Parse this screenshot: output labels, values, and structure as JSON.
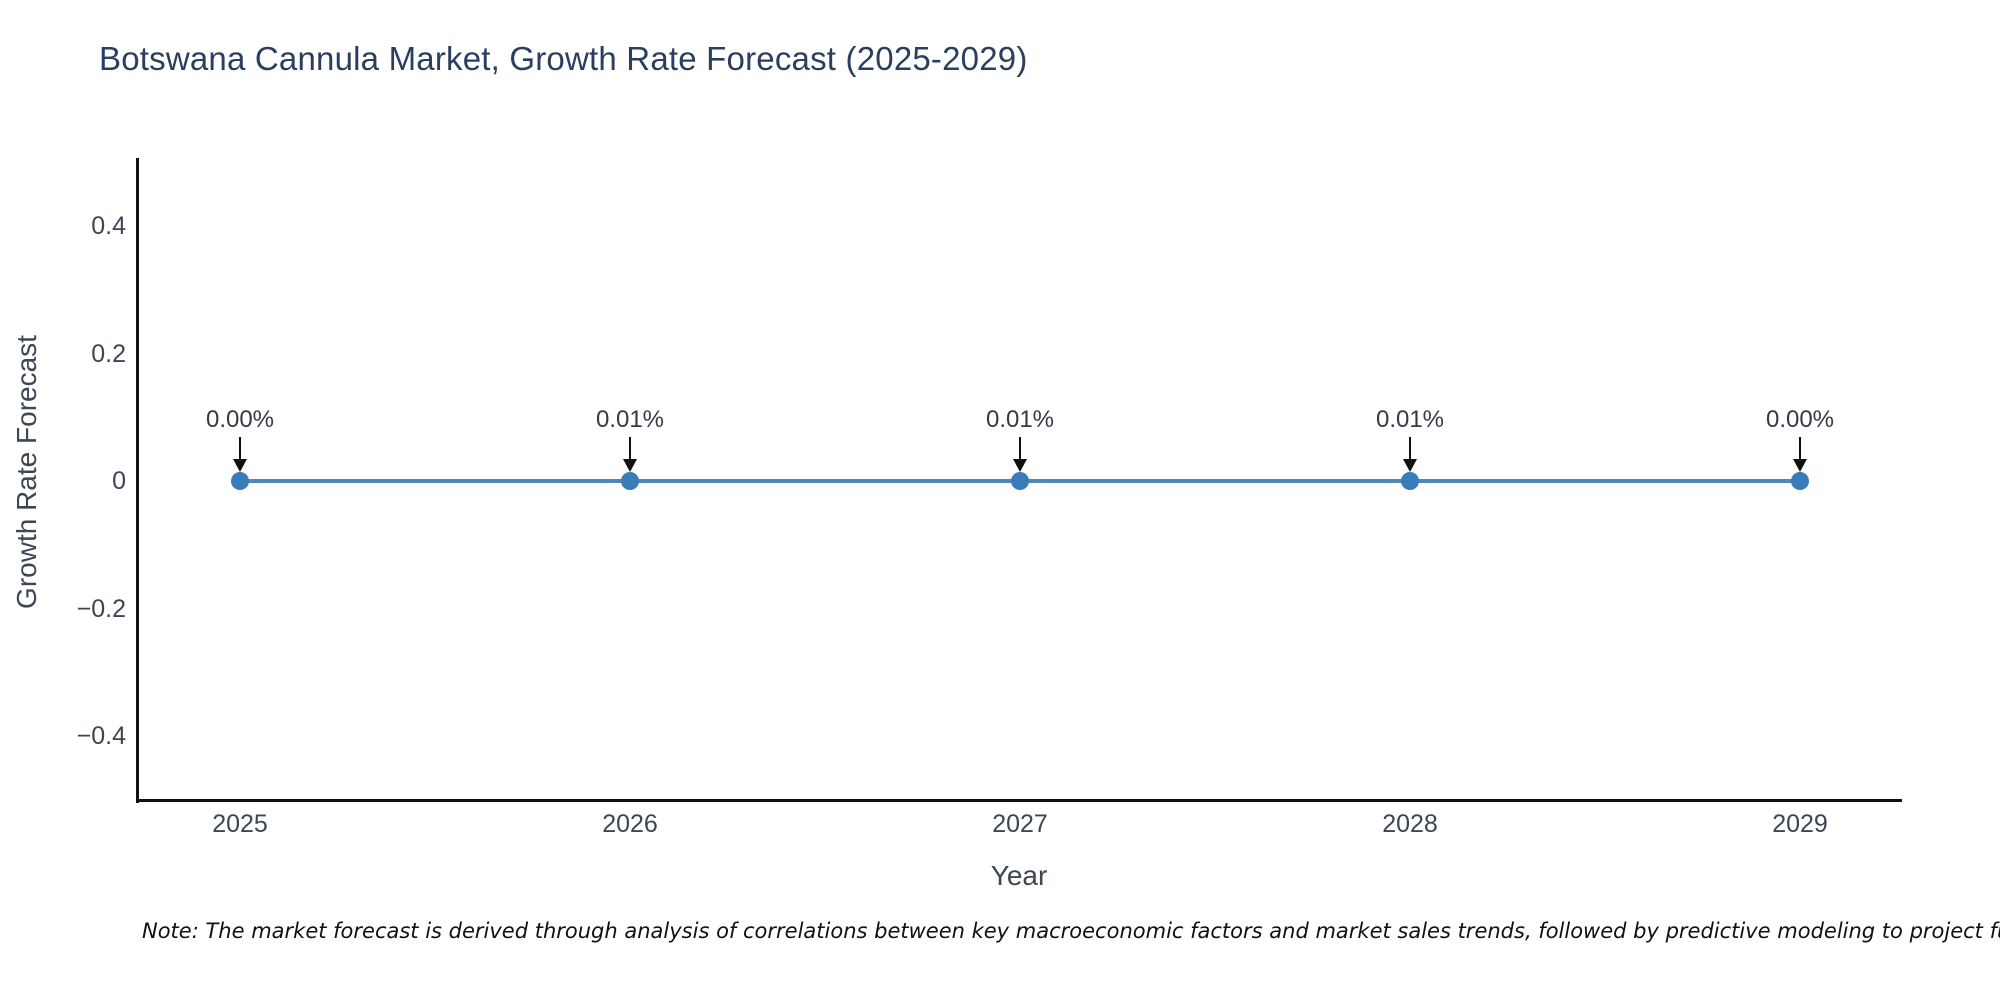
{
  "note": "Note: The market forecast is derived through analysis of correlations between key macroeconomic factors and market sales trends, followed by predictive modeling to project future sales.",
  "chart_data": {
    "type": "line",
    "title": "Botswana Cannula Market, Growth Rate Forecast (2025-2029)",
    "xlabel": "Year",
    "ylabel": "Growth Rate Forecast",
    "x": [
      2025,
      2026,
      2027,
      2028,
      2029
    ],
    "categories": [
      "2025",
      "2026",
      "2027",
      "2028",
      "2029"
    ],
    "series": [
      {
        "name": "Growth Rate Forecast",
        "values": [
          0.0,
          0.0001,
          0.0001,
          0.0001,
          0.0
        ]
      }
    ],
    "point_labels": [
      "0.00%",
      "0.01%",
      "0.01%",
      "0.01%",
      "0.00%"
    ],
    "yticks": [
      0.4,
      0.2,
      0,
      -0.2,
      -0.4
    ],
    "ytick_labels": [
      "0.4",
      "0.2",
      "0",
      "−0.2",
      "−0.4"
    ],
    "ylim": [
      -0.5,
      0.52
    ],
    "grid": false,
    "legend": "none",
    "colors": {
      "line": "#4e87ba",
      "marker": "#3a7cb8",
      "arrow": "#111111",
      "title": "#2a3f5f",
      "axis_text": "#3d4653",
      "spine": "#111111"
    }
  }
}
